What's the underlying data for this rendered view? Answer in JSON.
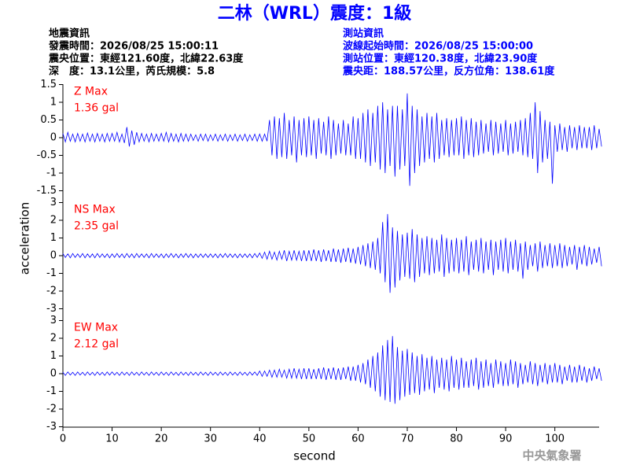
{
  "header": {
    "title": "二林（WRL）震度：1級",
    "left": [
      "地震資訊",
      "發震時間：2026/08/25 15:00:11",
      "震央位置：東經121.60度，北緯22.63度",
      "深　度：13.1公里，芮氏規模：5.8"
    ],
    "right": [
      "測站資訊",
      "波線起始時間：2026/08/25 15:00:00",
      "測站位置：東經120.38度，北緯23.90度",
      "震央距：188.57公里，反方位角：138.61度"
    ],
    "footer": "中央氣象署"
  },
  "y_axis_label": "acceleration",
  "x_axis": {
    "label": "second",
    "lim": [
      0,
      109
    ],
    "ticks": [
      0,
      10,
      20,
      30,
      40,
      50,
      60,
      70,
      80,
      90,
      100
    ]
  },
  "chart_data": [
    {
      "type": "line",
      "label": "Z Max",
      "peak": "1.36 gal",
      "color": "#0000ff",
      "ylim": [
        -1.5,
        1.5
      ],
      "yticks": [
        -1.5,
        -1,
        -0.5,
        0,
        0.5,
        1,
        1.5
      ],
      "x": [
        0,
        1,
        2,
        3,
        4,
        5,
        6,
        7,
        8,
        9,
        10,
        11,
        12,
        13,
        14,
        15,
        16,
        17,
        18,
        19,
        20,
        21,
        22,
        23,
        24,
        25,
        26,
        27,
        28,
        29,
        30,
        31,
        32,
        33,
        34,
        35,
        36,
        37,
        38,
        39,
        40,
        41,
        42,
        43,
        44,
        45,
        46,
        47,
        48,
        49,
        50,
        51,
        52,
        53,
        54,
        55,
        56,
        57,
        58,
        59,
        60,
        61,
        62,
        63,
        64,
        65,
        66,
        67,
        68,
        69,
        70,
        71,
        72,
        73,
        74,
        75,
        76,
        77,
        78,
        79,
        80,
        81,
        82,
        83,
        84,
        85,
        86,
        87,
        88,
        89,
        90,
        91,
        92,
        93,
        94,
        95,
        96,
        97,
        98,
        99,
        100,
        101,
        102,
        103,
        104,
        105,
        106,
        107,
        108,
        109
      ],
      "high": [
        0.12,
        0.15,
        0.1,
        0.12,
        0.1,
        0.13,
        0.1,
        0.12,
        0.1,
        0.12,
        0.12,
        0.15,
        0.1,
        0.3,
        0.2,
        0.15,
        0.12,
        0.1,
        0.12,
        0.1,
        0.12,
        0.15,
        0.12,
        0.1,
        0.12,
        0.1,
        0.1,
        0.08,
        0.1,
        0.1,
        0.08,
        0.1,
        0.08,
        0.1,
        0.08,
        0.1,
        0.08,
        0.1,
        0.08,
        0.1,
        0.1,
        0.1,
        0.5,
        0.6,
        0.55,
        0.7,
        0.5,
        0.6,
        0.5,
        0.55,
        0.6,
        0.5,
        0.55,
        0.45,
        0.6,
        0.5,
        0.4,
        0.5,
        0.4,
        0.6,
        0.55,
        0.7,
        0.8,
        0.7,
        0.9,
        1.0,
        0.8,
        0.9,
        0.9,
        0.8,
        1.25,
        0.9,
        0.8,
        0.6,
        0.7,
        0.6,
        0.7,
        0.5,
        0.55,
        0.5,
        0.55,
        0.6,
        0.5,
        0.55,
        0.45,
        0.5,
        0.4,
        0.5,
        0.45,
        0.4,
        0.5,
        0.4,
        0.45,
        0.5,
        0.55,
        0.7,
        1.0,
        0.75,
        0.5,
        0.45,
        0.35,
        0.4,
        0.3,
        0.35,
        0.3,
        0.35,
        0.3,
        0.3,
        0.35,
        0.25
      ],
      "low": [
        -0.12,
        -0.1,
        -0.12,
        -0.1,
        -0.12,
        -0.1,
        -0.12,
        -0.1,
        -0.12,
        -0.1,
        -0.1,
        -0.12,
        -0.15,
        -0.25,
        -0.2,
        -0.12,
        -0.1,
        -0.12,
        -0.1,
        -0.1,
        -0.1,
        -0.12,
        -0.1,
        -0.12,
        -0.1,
        -0.1,
        -0.08,
        -0.1,
        -0.08,
        -0.1,
        -0.08,
        -0.1,
        -0.08,
        -0.1,
        -0.08,
        -0.1,
        -0.08,
        -0.1,
        -0.08,
        -0.1,
        -0.1,
        -0.1,
        -0.5,
        -0.6,
        -0.55,
        -0.6,
        -0.5,
        -0.7,
        -0.5,
        -0.55,
        -0.5,
        -0.6,
        -0.45,
        -0.5,
        -0.6,
        -0.5,
        -0.45,
        -0.5,
        -0.5,
        -0.6,
        -0.6,
        -0.7,
        -0.8,
        -0.7,
        -0.9,
        -1.0,
        -0.8,
        -1.1,
        -0.9,
        -0.8,
        -1.36,
        -1.0,
        -0.8,
        -0.7,
        -0.6,
        -0.7,
        -0.6,
        -0.5,
        -0.55,
        -0.5,
        -0.5,
        -0.6,
        -0.5,
        -0.55,
        -0.5,
        -0.45,
        -0.4,
        -0.5,
        -0.45,
        -0.4,
        -0.5,
        -0.45,
        -0.4,
        -0.5,
        -0.55,
        -0.6,
        -1.0,
        -0.7,
        -0.6,
        -1.3,
        -0.4,
        -0.35,
        -0.4,
        -0.3,
        -0.35,
        -0.3,
        -0.3,
        -0.35,
        -0.3,
        -0.25
      ]
    },
    {
      "type": "line",
      "label": "NS Max",
      "peak": "2.35 gal",
      "color": "#0000ff",
      "ylim": [
        -3,
        3
      ],
      "yticks": [
        -3,
        -2,
        -1,
        0,
        1,
        2,
        3
      ],
      "x": [
        0,
        1,
        2,
        3,
        4,
        5,
        6,
        7,
        8,
        9,
        10,
        11,
        12,
        13,
        14,
        15,
        16,
        17,
        18,
        19,
        20,
        21,
        22,
        23,
        24,
        25,
        26,
        27,
        28,
        29,
        30,
        31,
        32,
        33,
        34,
        35,
        36,
        37,
        38,
        39,
        40,
        41,
        42,
        43,
        44,
        45,
        46,
        47,
        48,
        49,
        50,
        51,
        52,
        53,
        54,
        55,
        56,
        57,
        58,
        59,
        60,
        61,
        62,
        63,
        64,
        65,
        66,
        67,
        68,
        69,
        70,
        71,
        72,
        73,
        74,
        75,
        76,
        77,
        78,
        79,
        80,
        81,
        82,
        83,
        84,
        85,
        86,
        87,
        88,
        89,
        90,
        91,
        92,
        93,
        94,
        95,
        96,
        97,
        98,
        99,
        100,
        101,
        102,
        103,
        104,
        105,
        106,
        107,
        108,
        109
      ],
      "high": [
        0.12,
        0.1,
        0.12,
        0.1,
        0.12,
        0.1,
        0.1,
        0.12,
        0.1,
        0.1,
        0.1,
        0.12,
        0.1,
        0.12,
        0.1,
        0.12,
        0.1,
        0.1,
        0.12,
        0.1,
        0.1,
        0.1,
        0.12,
        0.1,
        0.1,
        0.12,
        0.1,
        0.1,
        0.1,
        0.1,
        0.1,
        0.1,
        0.1,
        0.12,
        0.1,
        0.1,
        0.1,
        0.1,
        0.1,
        0.12,
        0.15,
        0.2,
        0.25,
        0.2,
        0.25,
        0.3,
        0.25,
        0.3,
        0.25,
        0.3,
        0.3,
        0.35,
        0.3,
        0.35,
        0.3,
        0.4,
        0.35,
        0.4,
        0.45,
        0.4,
        0.5,
        0.6,
        0.7,
        0.8,
        1.0,
        1.9,
        2.35,
        1.6,
        1.4,
        1.2,
        1.3,
        1.5,
        1.2,
        1.0,
        1.1,
        1.0,
        0.9,
        1.2,
        1.0,
        0.9,
        1.0,
        0.9,
        1.1,
        0.8,
        0.9,
        1.0,
        0.8,
        0.9,
        0.8,
        0.9,
        1.0,
        0.8,
        0.9,
        0.7,
        0.8,
        0.6,
        0.7,
        0.8,
        0.6,
        0.7,
        0.6,
        0.7,
        0.6,
        0.5,
        0.6,
        0.5,
        0.6,
        0.5,
        0.4,
        0.5
      ],
      "low": [
        -0.1,
        -0.12,
        -0.1,
        -0.1,
        -0.12,
        -0.1,
        -0.12,
        -0.1,
        -0.1,
        -0.12,
        -0.1,
        -0.1,
        -0.12,
        -0.1,
        -0.12,
        -0.1,
        -0.1,
        -0.12,
        -0.1,
        -0.1,
        -0.12,
        -0.1,
        -0.1,
        -0.12,
        -0.1,
        -0.1,
        -0.12,
        -0.1,
        -0.1,
        -0.1,
        -0.1,
        -0.12,
        -0.1,
        -0.1,
        -0.1,
        -0.12,
        -0.1,
        -0.1,
        -0.12,
        -0.1,
        -0.15,
        -0.2,
        -0.2,
        -0.25,
        -0.2,
        -0.3,
        -0.25,
        -0.25,
        -0.3,
        -0.3,
        -0.3,
        -0.3,
        -0.35,
        -0.3,
        -0.35,
        -0.35,
        -0.4,
        -0.35,
        -0.4,
        -0.45,
        -0.5,
        -0.6,
        -0.7,
        -0.8,
        -1.0,
        -1.5,
        -2.1,
        -1.8,
        -1.4,
        -1.2,
        -1.3,
        -1.5,
        -1.2,
        -1.0,
        -1.1,
        -1.0,
        -0.9,
        -1.2,
        -1.0,
        -0.9,
        -1.0,
        -0.9,
        -1.1,
        -0.8,
        -0.9,
        -1.0,
        -0.8,
        -1.1,
        -0.8,
        -0.9,
        -1.0,
        -0.8,
        -0.9,
        -1.3,
        -0.8,
        -0.6,
        -0.9,
        -0.7,
        -0.6,
        -0.7,
        -0.6,
        -0.7,
        -0.6,
        -0.5,
        -0.8,
        -0.5,
        -0.6,
        -0.5,
        -0.4,
        -0.6
      ]
    },
    {
      "type": "line",
      "label": "EW Max",
      "peak": "2.12 gal",
      "color": "#0000ff",
      "ylim": [
        -3,
        3
      ],
      "yticks": [
        -3,
        -2,
        -1,
        0,
        1,
        2,
        3
      ],
      "x": [
        0,
        1,
        2,
        3,
        4,
        5,
        6,
        7,
        8,
        9,
        10,
        11,
        12,
        13,
        14,
        15,
        16,
        17,
        18,
        19,
        20,
        21,
        22,
        23,
        24,
        25,
        26,
        27,
        28,
        29,
        30,
        31,
        32,
        33,
        34,
        35,
        36,
        37,
        38,
        39,
        40,
        41,
        42,
        43,
        44,
        45,
        46,
        47,
        48,
        49,
        50,
        51,
        52,
        53,
        54,
        55,
        56,
        57,
        58,
        59,
        60,
        61,
        62,
        63,
        64,
        65,
        66,
        67,
        68,
        69,
        70,
        71,
        72,
        73,
        74,
        75,
        76,
        77,
        78,
        79,
        80,
        81,
        82,
        83,
        84,
        85,
        86,
        87,
        88,
        89,
        90,
        91,
        92,
        93,
        94,
        95,
        96,
        97,
        98,
        99,
        100,
        101,
        102,
        103,
        104,
        105,
        106,
        107,
        108,
        109
      ],
      "high": [
        0.08,
        0.1,
        0.08,
        0.1,
        0.08,
        0.1,
        0.08,
        0.1,
        0.08,
        0.1,
        0.1,
        0.08,
        0.1,
        0.08,
        0.1,
        0.08,
        0.1,
        0.08,
        0.1,
        0.08,
        0.1,
        0.08,
        0.1,
        0.08,
        0.1,
        0.08,
        0.1,
        0.08,
        0.1,
        0.08,
        0.1,
        0.08,
        0.1,
        0.08,
        0.1,
        0.08,
        0.1,
        0.08,
        0.1,
        0.1,
        0.15,
        0.15,
        0.2,
        0.2,
        0.25,
        0.2,
        0.25,
        0.3,
        0.25,
        0.3,
        0.3,
        0.25,
        0.3,
        0.35,
        0.3,
        0.35,
        0.3,
        0.35,
        0.4,
        0.4,
        0.5,
        0.6,
        0.8,
        1.0,
        1.2,
        1.6,
        1.9,
        2.12,
        1.5,
        1.3,
        1.4,
        1.2,
        1.0,
        1.1,
        0.9,
        1.0,
        0.8,
        0.9,
        0.8,
        1.0,
        0.8,
        0.9,
        0.7,
        0.8,
        0.9,
        0.7,
        0.8,
        0.6,
        0.8,
        0.7,
        0.6,
        0.8,
        0.7,
        0.6,
        0.5,
        0.7,
        0.6,
        0.5,
        0.6,
        0.5,
        0.6,
        0.5,
        0.4,
        0.5,
        0.4,
        0.5,
        0.4,
        0.3,
        0.4,
        0.3
      ],
      "low": [
        -0.1,
        -0.08,
        -0.1,
        -0.08,
        -0.1,
        -0.08,
        -0.1,
        -0.08,
        -0.1,
        -0.08,
        -0.08,
        -0.1,
        -0.08,
        -0.1,
        -0.08,
        -0.1,
        -0.08,
        -0.1,
        -0.08,
        -0.1,
        -0.08,
        -0.1,
        -0.08,
        -0.1,
        -0.08,
        -0.1,
        -0.08,
        -0.1,
        -0.08,
        -0.1,
        -0.08,
        -0.1,
        -0.08,
        -0.1,
        -0.08,
        -0.1,
        -0.08,
        -0.1,
        -0.08,
        -0.1,
        -0.15,
        -0.15,
        -0.2,
        -0.2,
        -0.2,
        -0.25,
        -0.25,
        -0.25,
        -0.3,
        -0.3,
        -0.3,
        -0.3,
        -0.3,
        -0.35,
        -0.3,
        -0.35,
        -0.35,
        -0.3,
        -0.4,
        -0.4,
        -0.5,
        -0.6,
        -0.8,
        -1.0,
        -1.3,
        -1.5,
        -1.6,
        -1.7,
        -1.5,
        -1.3,
        -1.2,
        -1.1,
        -1.2,
        -1.0,
        -0.9,
        -1.1,
        -0.8,
        -0.9,
        -1.0,
        -0.8,
        -0.9,
        -0.8,
        -0.8,
        -0.7,
        -0.9,
        -0.8,
        -0.7,
        -0.8,
        -0.6,
        -0.7,
        -0.7,
        -0.6,
        -0.8,
        -0.6,
        -0.5,
        -0.6,
        -0.7,
        -0.5,
        -0.6,
        -0.5,
        -0.5,
        -0.6,
        -0.4,
        -0.5,
        -0.5,
        -0.4,
        -0.5,
        -0.4,
        -0.3,
        -0.4
      ]
    }
  ]
}
